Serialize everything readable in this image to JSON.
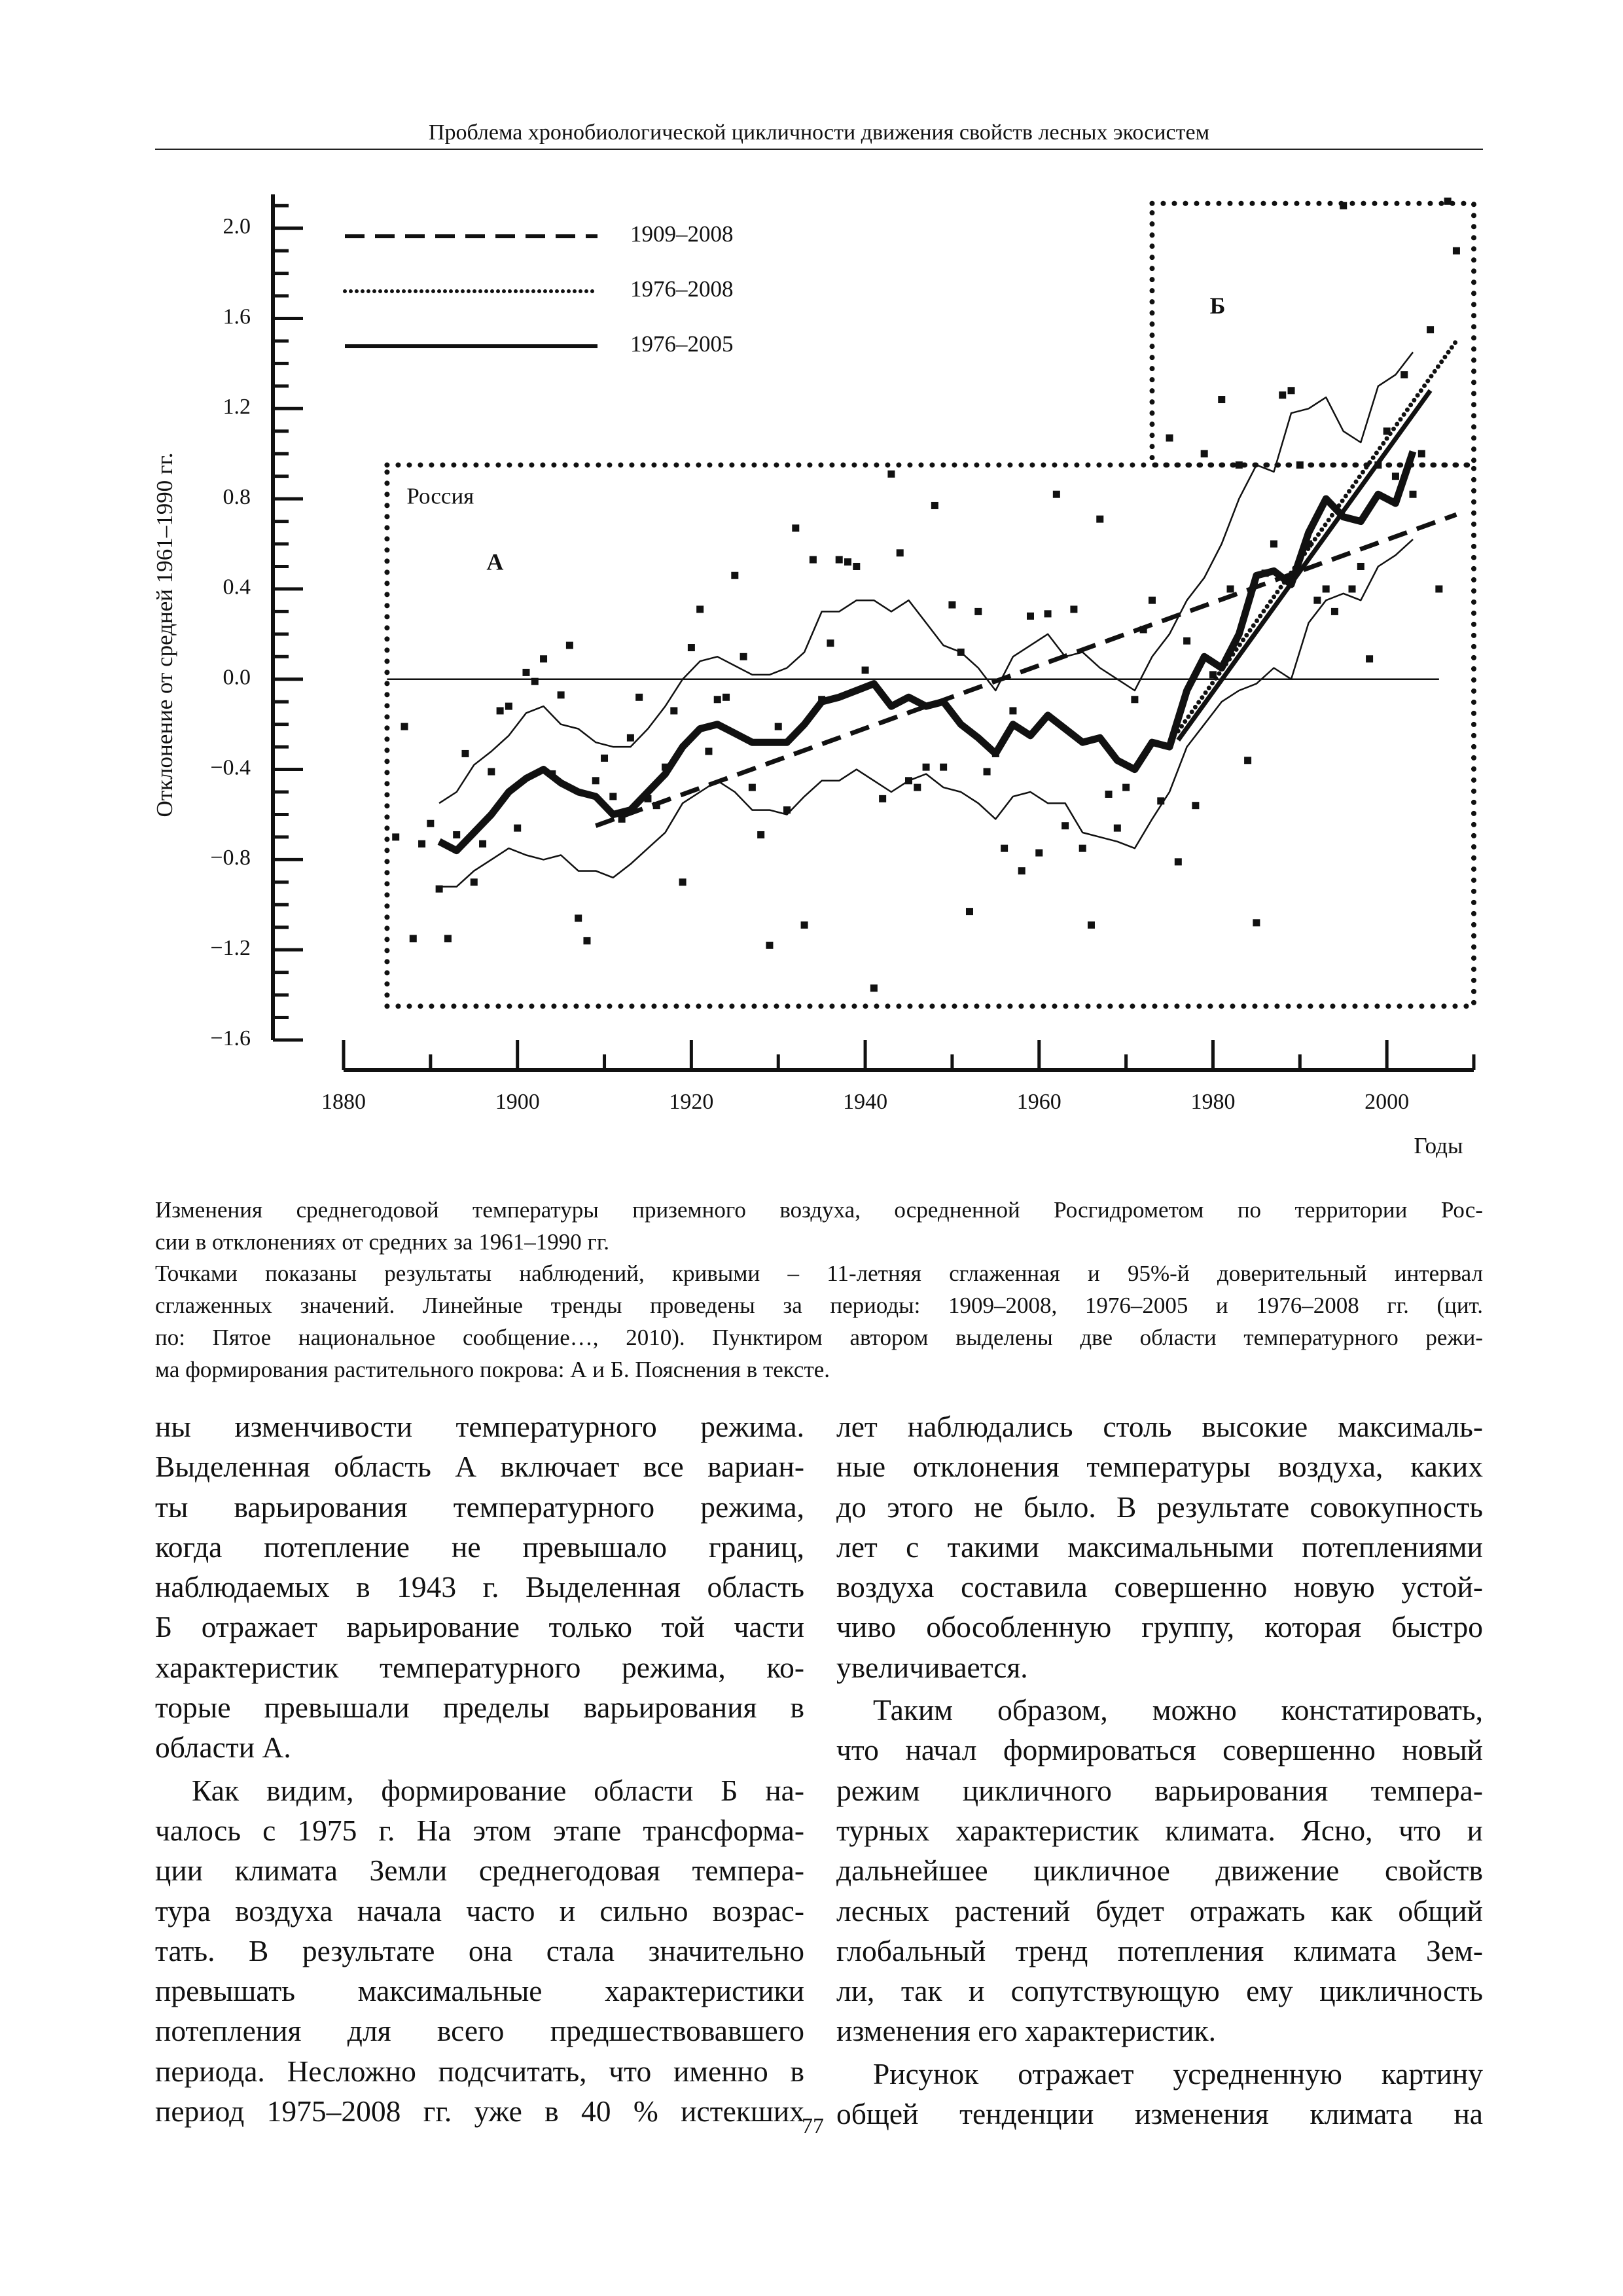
{
  "header": {
    "title": "Проблема хронобиологической цикличности движения свойств лесных экосистем"
  },
  "chart_data": {
    "type": "line",
    "ylabel": "Отклонение от средней 1961–1990 гг.",
    "xlabel": "Годы",
    "xlim": [
      1880,
      2010
    ],
    "ylim": [
      -1.6,
      2.15
    ],
    "xticks": [
      1880,
      1900,
      1920,
      1940,
      1960,
      1980,
      2000
    ],
    "xminorticks": [
      1890,
      1910,
      1930,
      1950,
      1970,
      1990,
      2010
    ],
    "yticks": [
      {
        "value": 2.0,
        "label": "2.0"
      },
      {
        "value": 1.6,
        "label": "1.6"
      },
      {
        "value": 1.2,
        "label": "1.2"
      },
      {
        "value": 0.8,
        "label": "0.8"
      },
      {
        "value": 0.4,
        "label": "0.4"
      },
      {
        "value": 0.0,
        "label": "0.0"
      },
      {
        "value": -0.4,
        "label": "−0.4"
      },
      {
        "value": -0.8,
        "label": "−0.8"
      },
      {
        "value": -1.2,
        "label": "−1.2"
      },
      {
        "value": -1.6,
        "label": "−1.6"
      }
    ],
    "yminorticks": [
      -1.5,
      -1.4,
      -1.3,
      -1.1,
      -1.0,
      -0.9,
      -0.7,
      -0.6,
      -0.5,
      -0.3,
      -0.2,
      -0.1,
      0.1,
      0.2,
      0.3,
      0.5,
      0.6,
      0.7,
      0.9,
      1.0,
      1.1,
      1.3,
      1.4,
      1.5,
      1.7,
      1.8,
      1.9,
      2.1
    ],
    "color": "#111111",
    "zero_line": {
      "value": 0,
      "x": [
        1885,
        2006
      ]
    },
    "regions": [
      {
        "label": "А",
        "name": "Россия",
        "x": [
          1885,
          2010
        ],
        "y": [
          -1.45,
          0.95
        ]
      },
      {
        "label": "Б",
        "x": [
          1973,
          2010
        ],
        "y": [
          0.95,
          2.11
        ]
      }
    ],
    "points": {
      "x": [
        1886,
        1887,
        1888,
        1889,
        1890,
        1891,
        1892,
        1893,
        1894,
        1895,
        1896,
        1897,
        1898,
        1899,
        1900,
        1901,
        1902,
        1903,
        1904,
        1905,
        1906,
        1907,
        1908,
        1909,
        1910,
        1911,
        1912,
        1913,
        1914,
        1915,
        1916,
        1917,
        1918,
        1919,
        1920,
        1921,
        1922,
        1923,
        1924,
        1925,
        1926,
        1927,
        1928,
        1929,
        1930,
        1931,
        1932,
        1933,
        1934,
        1935,
        1936,
        1937,
        1938,
        1939,
        1940,
        1941,
        1942,
        1943,
        1944,
        1945,
        1946,
        1947,
        1948,
        1949,
        1950,
        1951,
        1952,
        1953,
        1954,
        1955,
        1956,
        1957,
        1958,
        1959,
        1960,
        1961,
        1962,
        1963,
        1964,
        1965,
        1966,
        1967,
        1968,
        1969,
        1970,
        1971,
        1972,
        1973,
        1974,
        1975,
        1976,
        1977,
        1978,
        1979,
        1980,
        1981,
        1982,
        1983,
        1984,
        1985,
        1986,
        1987,
        1988,
        1989,
        1990,
        1991,
        1992,
        1993,
        1994,
        1995,
        1996,
        1997,
        1998,
        1999,
        2000,
        2001,
        2002,
        2003,
        2004,
        2005,
        2006,
        2007,
        2008
      ],
      "values": [
        -0.7,
        -0.21,
        -1.15,
        -0.73,
        -0.64,
        -0.93,
        -1.15,
        -0.69,
        -0.33,
        -0.9,
        -0.73,
        -0.41,
        -0.14,
        -0.12,
        -0.66,
        0.03,
        -0.01,
        0.09,
        -0.42,
        -0.07,
        0.15,
        -1.06,
        -1.16,
        -0.45,
        -0.35,
        -0.52,
        -0.62,
        -0.26,
        -0.08,
        -0.53,
        -0.56,
        -0.39,
        -0.14,
        -0.9,
        0.14,
        0.31,
        -0.32,
        -0.09,
        -0.08,
        0.46,
        0.1,
        -0.48,
        -0.69,
        -1.18,
        -0.21,
        -0.58,
        0.67,
        -1.09,
        0.53,
        -0.09,
        0.16,
        0.53,
        0.52,
        0.5,
        0.04,
        -1.37,
        -0.53,
        0.91,
        0.56,
        -0.45,
        -0.48,
        -0.39,
        0.77,
        -0.39,
        0.33,
        0.12,
        -1.03,
        0.3,
        -0.41,
        -0.33,
        -0.75,
        -0.14,
        -0.85,
        0.28,
        -0.77,
        0.29,
        0.82,
        -0.65,
        0.31,
        -0.75,
        -1.09,
        0.71,
        -0.51,
        -0.66,
        -0.48,
        -0.09,
        0.22,
        0.35,
        -0.54,
        1.07,
        -0.81,
        0.17,
        -0.56,
        1.0,
        0.02,
        1.24,
        0.4,
        0.95,
        -0.36,
        -1.08,
        0.47,
        0.6,
        1.26,
        1.28,
        0.95,
        0.6,
        0.35,
        0.4,
        0.3,
        2.1,
        0.4,
        0.5,
        0.09,
        0.95,
        1.1,
        0.9,
        1.35,
        0.82,
        1.0,
        1.55,
        0.4,
        2.12,
        1.9
      ]
    },
    "smoothed": {
      "x": [
        1891,
        1893,
        1895,
        1897,
        1899,
        1901,
        1903,
        1905,
        1907,
        1909,
        1911,
        1913,
        1915,
        1917,
        1919,
        1921,
        1923,
        1925,
        1927,
        1929,
        1931,
        1933,
        1935,
        1937,
        1939,
        1941,
        1943,
        1945,
        1947,
        1949,
        1951,
        1953,
        1955,
        1957,
        1959,
        1961,
        1963,
        1965,
        1967,
        1969,
        1971,
        1973,
        1975,
        1977,
        1979,
        1981,
        1983,
        1985,
        1987,
        1989,
        1991,
        1993,
        1995,
        1997,
        1999,
        2001,
        2003
      ],
      "values": [
        -0.72,
        -0.76,
        -0.68,
        -0.6,
        -0.5,
        -0.44,
        -0.4,
        -0.46,
        -0.5,
        -0.52,
        -0.6,
        -0.58,
        -0.5,
        -0.42,
        -0.3,
        -0.22,
        -0.2,
        -0.24,
        -0.28,
        -0.28,
        -0.28,
        -0.2,
        -0.1,
        -0.08,
        -0.05,
        -0.02,
        -0.12,
        -0.08,
        -0.12,
        -0.1,
        -0.2,
        -0.26,
        -0.33,
        -0.2,
        -0.25,
        -0.16,
        -0.22,
        -0.28,
        -0.26,
        -0.36,
        -0.4,
        -0.28,
        -0.3,
        -0.05,
        0.1,
        0.05,
        0.2,
        0.46,
        0.48,
        0.42,
        0.65,
        0.8,
        0.72,
        0.7,
        0.82,
        0.78,
        1.01
      ],
      "upper": [
        -0.55,
        -0.5,
        -0.38,
        -0.32,
        -0.25,
        -0.15,
        -0.12,
        -0.2,
        -0.22,
        -0.28,
        -0.3,
        -0.3,
        -0.22,
        -0.12,
        0.0,
        0.08,
        0.1,
        0.06,
        0.02,
        0.02,
        0.05,
        0.12,
        0.3,
        0.3,
        0.35,
        0.35,
        0.3,
        0.35,
        0.25,
        0.15,
        0.12,
        0.05,
        -0.05,
        0.1,
        0.15,
        0.2,
        0.1,
        0.12,
        0.05,
        0.0,
        -0.05,
        0.1,
        0.2,
        0.35,
        0.45,
        0.6,
        0.8,
        0.95,
        0.92,
        1.18,
        1.2,
        1.25,
        1.1,
        1.05,
        1.3,
        1.35,
        1.45
      ],
      "lower": [
        -0.92,
        -0.92,
        -0.85,
        -0.8,
        -0.75,
        -0.78,
        -0.8,
        -0.78,
        -0.85,
        -0.85,
        -0.88,
        -0.82,
        -0.75,
        -0.68,
        -0.55,
        -0.5,
        -0.45,
        -0.5,
        -0.58,
        -0.58,
        -0.6,
        -0.52,
        -0.45,
        -0.45,
        -0.4,
        -0.45,
        -0.5,
        -0.45,
        -0.42,
        -0.48,
        -0.5,
        -0.55,
        -0.62,
        -0.52,
        -0.5,
        -0.55,
        -0.55,
        -0.68,
        -0.7,
        -0.72,
        -0.75,
        -0.62,
        -0.5,
        -0.3,
        -0.2,
        -0.1,
        -0.05,
        -0.02,
        0.05,
        0.0,
        0.25,
        0.35,
        0.38,
        0.35,
        0.5,
        0.55,
        0.62
      ]
    },
    "series": [
      {
        "name": "1909–2008",
        "dash": "dashed",
        "color": "#111111",
        "x": [
          1909,
          2008
        ],
        "values": [
          -0.65,
          0.73
        ]
      },
      {
        "name": "1976–2008",
        "dash": "dotted",
        "color": "#111111",
        "x": [
          1976,
          2008
        ],
        "values": [
          -0.23,
          1.5
        ]
      },
      {
        "name": "1976–2005",
        "dash": "solid",
        "color": "#111111",
        "x": [
          1976,
          2005
        ],
        "values": [
          -0.27,
          1.28
        ]
      }
    ]
  },
  "caption": {
    "paragraphs": [
      [
        "Изменения среднегодовой температуры приземного воздуха, осредненной Росгидрометом по территории Рос-",
        "сии в отклонениях от средних за 1961–1990 гг."
      ],
      [
        "Точками показаны результаты наблюдений, кривыми – 11-летняя сглаженная и 95%-й доверительный интервал",
        "сглаженных значений. Линейные тренды проведены за периоды: 1909–2008, 1976–2005 и 1976–2008 гг. (цит.",
        "по: Пятое национальное сообщение…, 2010). Пунктиром автором выделены две области температурного режи-",
        "ма формирования растительного покрова: А и Б. Пояснения в тексте."
      ]
    ]
  },
  "body": {
    "columns": [
      {
        "paragraphs": [
          [
            "ны изменчивости температурного режима.",
            "Выделенная область А включает все вариан-",
            "ты варьирования температурного режима,",
            "когда потепление не превышало границ,",
            "наблюдаемых в 1943 г. Выделенная область",
            "Б отражает варьирование только той части",
            "характеристик температурного режима, ко-",
            "торые превышали пределы варьирования в",
            "области А."
          ],
          [
            "Как видим, формирование области Б на-",
            "чалось с 1975 г. На этом этапе трансформа-",
            "ции климата Земли среднегодовая темпера-",
            "тура воздуха начала часто и сильно возрас-",
            "тать. В результате она стала значительно",
            "превышать максимальные характеристики",
            "потепления для всего предшествовавшего",
            "периода. Несложно подсчитать, что именно в",
            "период 1975–2008 гг. уже в 40 % истекших"
          ]
        ]
      },
      {
        "paragraphs": [
          [
            "лет наблюдались столь высокие максималь-",
            "ные отклонения температуры воздуха, каких",
            "до этого не было. В результате совокупность",
            "лет с такими максимальными потеплениями",
            "воздуха составила совершенно новую устой-",
            "чиво обособленную группу, которая быстро",
            "увеличивается."
          ],
          [
            "Таким образом, можно констатировать,",
            "что начал формироваться совершенно новый",
            "режим цикличного варьирования темпера-",
            "турных характеристик климата. Ясно, что и",
            "дальнейшее цикличное движение свойств",
            "лесных растений будет отражать как общий",
            "глобальный тренд потепления климата Зем-",
            "ли, так и сопутствующую ему цикличность",
            "изменения его характеристик."
          ],
          [
            "Рисунок отражает усредненную картину",
            "общей тенденции изменения климата на"
          ]
        ]
      }
    ]
  },
  "footer": {
    "page_number": "77"
  }
}
